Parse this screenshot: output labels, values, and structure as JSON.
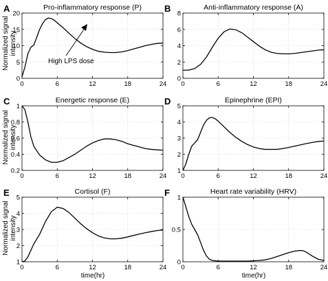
{
  "figure": {
    "xlabel": "time(hr)",
    "ylabel_line1": "Normalized signal",
    "ylabel_line2": "intensity"
  },
  "chart_data": [
    {
      "label": "A",
      "type": "line",
      "title": "Pro-inflammatory response (P)",
      "xlim": [
        0,
        24
      ],
      "ylim": [
        0,
        20
      ],
      "xticks": [
        0,
        6,
        12,
        18,
        24
      ],
      "yticks": [
        0,
        5,
        10,
        15,
        20
      ],
      "grid": true,
      "annotation": "High LPS dose",
      "x": [
        0,
        0.5,
        1,
        1.5,
        2,
        2.5,
        3,
        3.5,
        4,
        4.5,
        5,
        5.5,
        6,
        7,
        8,
        9,
        10,
        11,
        12,
        13,
        14,
        15,
        16,
        17,
        18,
        19,
        20,
        21,
        22,
        23,
        24
      ],
      "y": [
        0.5,
        3.5,
        7.5,
        9.5,
        10.2,
        12.5,
        15,
        16.8,
        18,
        18.5,
        18.3,
        17.8,
        17,
        15.5,
        13.8,
        12.2,
        10.8,
        9.7,
        8.9,
        8.3,
        8,
        7.9,
        7.9,
        8.1,
        8.5,
        9,
        9.5,
        10,
        10.4,
        10.7,
        10.8
      ]
    },
    {
      "label": "B",
      "type": "line",
      "title": "Anti-inflammatory response (A)",
      "xlim": [
        0,
        24
      ],
      "ylim": [
        0,
        8
      ],
      "xticks": [
        0,
        6,
        12,
        18,
        24
      ],
      "yticks": [
        0,
        2,
        4,
        6,
        8
      ],
      "grid": true,
      "x": [
        0,
        1,
        2,
        3,
        4,
        5,
        6,
        7,
        8,
        9,
        10,
        11,
        12,
        13,
        14,
        15,
        16,
        17,
        18,
        19,
        20,
        21,
        22,
        23,
        24
      ],
      "y": [
        1,
        1,
        1.2,
        1.7,
        2.6,
        3.8,
        4.9,
        5.7,
        6.05,
        5.95,
        5.6,
        5.05,
        4.5,
        3.95,
        3.5,
        3.2,
        3.05,
        3,
        3,
        3.05,
        3.15,
        3.25,
        3.35,
        3.45,
        3.5
      ]
    },
    {
      "label": "C",
      "type": "line",
      "title": "Energetic response (E)",
      "xlim": [
        0,
        24
      ],
      "ylim": [
        0.2,
        1
      ],
      "xticks": [
        0,
        6,
        12,
        18,
        24
      ],
      "yticks": [
        0.2,
        0.4,
        0.6,
        0.8,
        1
      ],
      "grid": true,
      "x": [
        0,
        0.5,
        1,
        1.5,
        2,
        3,
        4,
        5,
        6,
        7,
        8,
        9,
        10,
        11,
        12,
        13,
        14,
        15,
        16,
        17,
        18,
        19,
        20,
        21,
        22,
        23,
        24
      ],
      "y": [
        1,
        0.95,
        0.8,
        0.62,
        0.5,
        0.39,
        0.33,
        0.3,
        0.3,
        0.32,
        0.36,
        0.4,
        0.45,
        0.5,
        0.54,
        0.57,
        0.59,
        0.59,
        0.58,
        0.56,
        0.53,
        0.51,
        0.49,
        0.47,
        0.46,
        0.455,
        0.45
      ]
    },
    {
      "label": "D",
      "type": "line",
      "title": "Epinephrine (EPI)",
      "xlim": [
        0,
        24
      ],
      "ylim": [
        1,
        5
      ],
      "xticks": [
        0,
        6,
        12,
        18,
        24
      ],
      "yticks": [
        1,
        2,
        3,
        4,
        5
      ],
      "grid": true,
      "x": [
        0,
        0.5,
        1,
        1.5,
        2,
        2.5,
        3,
        3.5,
        4,
        4.5,
        5,
        5.5,
        6,
        7,
        8,
        9,
        10,
        11,
        12,
        13,
        14,
        15,
        16,
        17,
        18,
        19,
        20,
        21,
        22,
        23,
        24
      ],
      "y": [
        1,
        1.4,
        2,
        2.5,
        2.7,
        2.9,
        3.35,
        3.8,
        4.1,
        4.25,
        4.28,
        4.2,
        4.05,
        3.7,
        3.35,
        3.05,
        2.8,
        2.6,
        2.45,
        2.35,
        2.3,
        2.3,
        2.3,
        2.35,
        2.42,
        2.5,
        2.58,
        2.66,
        2.73,
        2.79,
        2.82
      ]
    },
    {
      "label": "E",
      "type": "line",
      "title": "Cortisol (F)",
      "xlim": [
        0,
        24
      ],
      "ylim": [
        1,
        5
      ],
      "xticks": [
        0,
        6,
        12,
        18,
        24
      ],
      "yticks": [
        1,
        2,
        3,
        4,
        5
      ],
      "grid": true,
      "x": [
        0,
        0.5,
        1,
        1.5,
        2,
        3,
        4,
        5,
        6,
        7,
        8,
        9,
        10,
        11,
        12,
        13,
        14,
        15,
        16,
        17,
        18,
        19,
        20,
        21,
        22,
        23,
        24
      ],
      "y": [
        1,
        1.05,
        1.3,
        1.7,
        2.1,
        2.7,
        3.5,
        4.1,
        4.38,
        4.3,
        4.05,
        3.7,
        3.35,
        3.05,
        2.8,
        2.6,
        2.48,
        2.42,
        2.42,
        2.46,
        2.54,
        2.63,
        2.72,
        2.8,
        2.87,
        2.93,
        2.97
      ]
    },
    {
      "label": "F",
      "type": "line",
      "title": "Heart rate variability (HRV)",
      "xlim": [
        0,
        24
      ],
      "ylim": [
        0,
        1
      ],
      "xticks": [
        0,
        6,
        12,
        18,
        24
      ],
      "yticks": [
        0,
        0.5,
        1
      ],
      "grid": true,
      "x": [
        0,
        0.5,
        1,
        1.5,
        2,
        2.5,
        3,
        3.5,
        4,
        4.5,
        5,
        6,
        7,
        8,
        9,
        10,
        11,
        12,
        13,
        14,
        15,
        16,
        17,
        18,
        19,
        20,
        20.5,
        21,
        22,
        23,
        24
      ],
      "y": [
        1,
        0.85,
        0.7,
        0.58,
        0.5,
        0.42,
        0.3,
        0.18,
        0.09,
        0.04,
        0.02,
        0.01,
        0.01,
        0.01,
        0.01,
        0.01,
        0.01,
        0.015,
        0.02,
        0.03,
        0.05,
        0.08,
        0.11,
        0.14,
        0.165,
        0.175,
        0.17,
        0.15,
        0.09,
        0.04,
        0.02
      ]
    }
  ]
}
